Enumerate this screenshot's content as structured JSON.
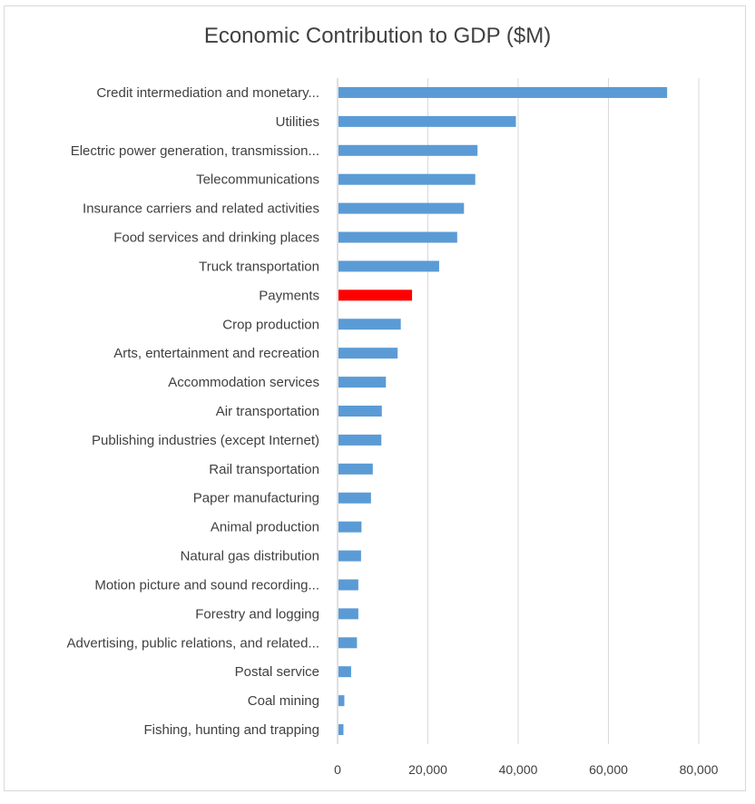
{
  "chart_data": {
    "type": "bar",
    "orientation": "horizontal",
    "title": "Economic Contribution to GDP ($M)",
    "xlabel": "",
    "ylabel": "",
    "xlim": [
      0,
      80000
    ],
    "xticks": [
      0,
      20000,
      40000,
      60000,
      80000
    ],
    "xtick_labels": [
      "0",
      "20,000",
      "40,000",
      "60,000",
      "80,000"
    ],
    "grid": "vertical",
    "categories": [
      "Credit intermediation and monetary...",
      "Utilities",
      "Electric power generation, transmission...",
      "Telecommunications",
      "Insurance carriers and related activities",
      "Food services and drinking places",
      "Truck transportation",
      "Payments",
      "Crop production",
      "Arts, entertainment and recreation",
      "Accommodation services",
      "Air transportation",
      "Publishing industries (except Internet)",
      "Rail transportation",
      "Paper manufacturing",
      "Animal production",
      "Natural gas distribution",
      "Motion picture and sound recording...",
      "Forestry and logging",
      "Advertising, public relations, and related...",
      "Postal service",
      "Coal mining",
      "Fishing, hunting and trapping"
    ],
    "values": [
      73000,
      39500,
      31000,
      30500,
      28000,
      26500,
      22500,
      16500,
      14000,
      13300,
      10700,
      9800,
      9700,
      7800,
      7400,
      5300,
      5200,
      4600,
      4600,
      4300,
      3000,
      1500,
      1300
    ],
    "highlight_category": "Payments",
    "colors": {
      "default_bar": "#5b9bd5",
      "highlight_bar": "#ff0000",
      "gridline": "#d9d9d9",
      "axis": "#bfbfbf",
      "text": "#404040"
    }
  }
}
